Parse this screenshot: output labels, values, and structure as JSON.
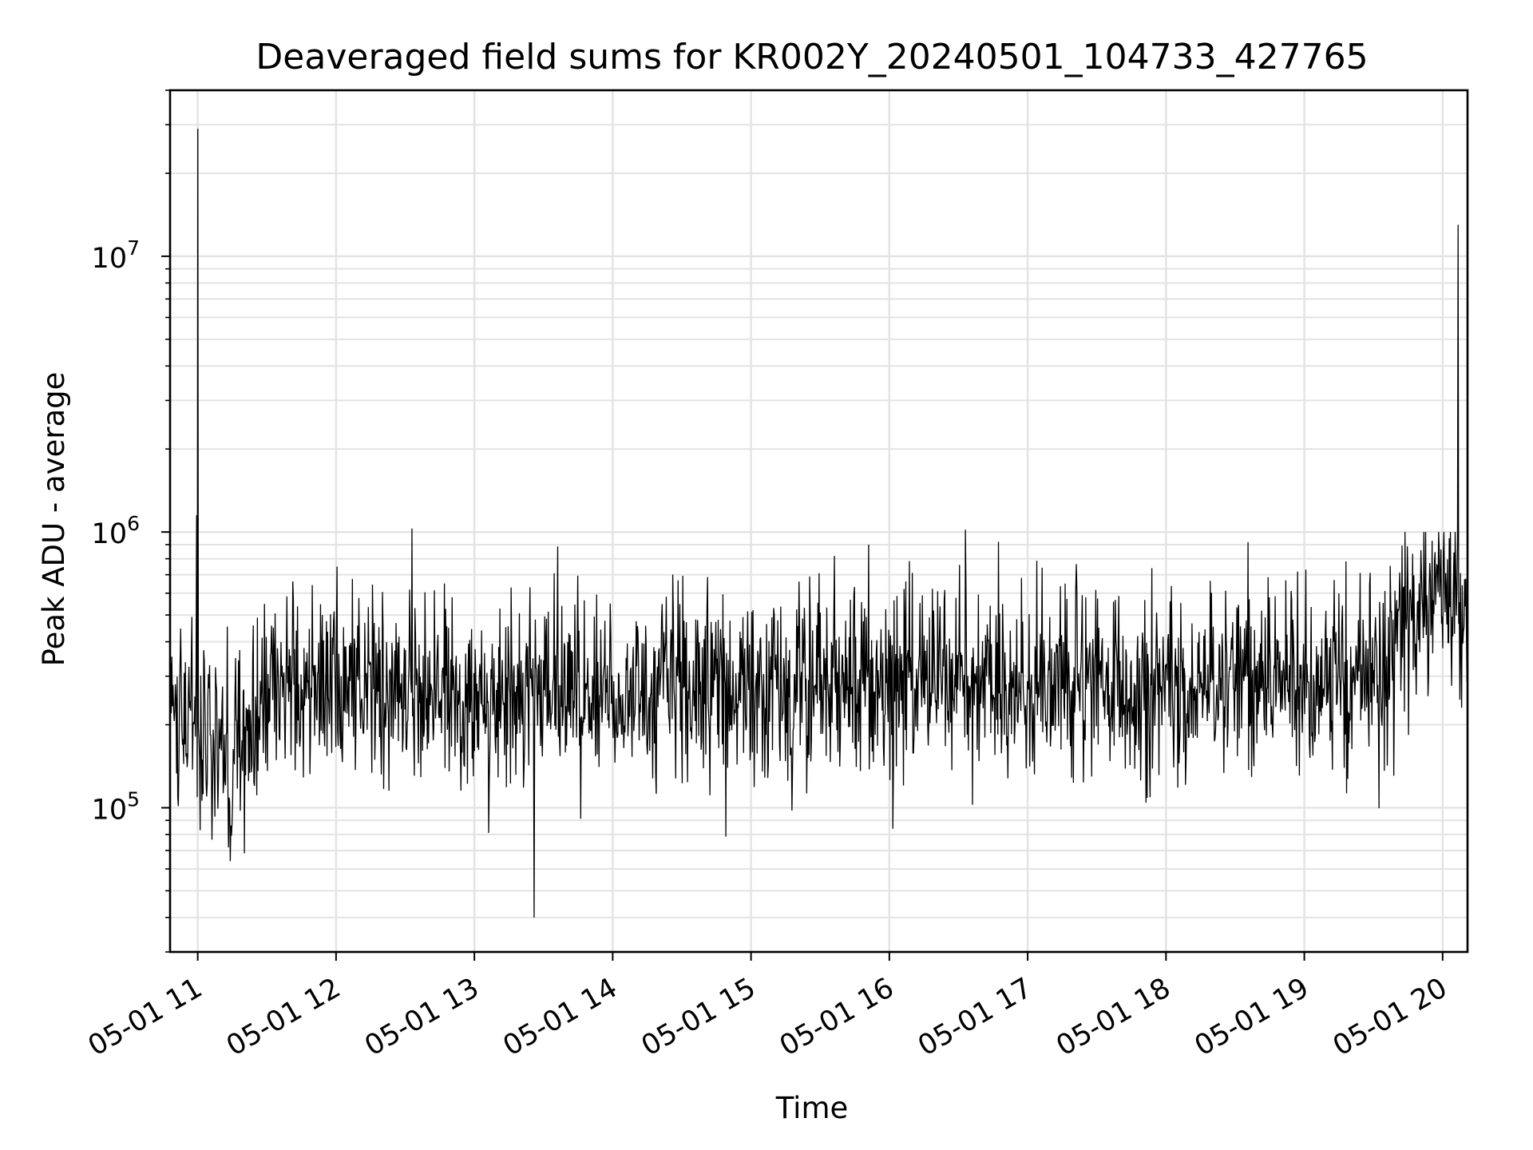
{
  "chart_data": {
    "type": "line",
    "title": "Deaveraged field sums for KR002Y_20240501_104733_427765",
    "xlabel": "Time",
    "ylabel": "Peak ADU - average",
    "yscale": "log",
    "grid": true,
    "xlim": [
      10.8,
      20.18
    ],
    "ylim": [
      30000,
      40000000
    ],
    "x_ticks": [
      {
        "value": 11,
        "label": "05-01 11"
      },
      {
        "value": 12,
        "label": "05-01 12"
      },
      {
        "value": 13,
        "label": "05-01 13"
      },
      {
        "value": 14,
        "label": "05-01 14"
      },
      {
        "value": 15,
        "label": "05-01 15"
      },
      {
        "value": 16,
        "label": "05-01 16"
      },
      {
        "value": 17,
        "label": "05-01 17"
      },
      {
        "value": 18,
        "label": "05-01 18"
      },
      {
        "value": 19,
        "label": "05-01 19"
      },
      {
        "value": 20,
        "label": "05-01 20"
      }
    ],
    "y_ticks": [
      {
        "value": 100000,
        "base": "10",
        "exp": "5"
      },
      {
        "value": 1000000,
        "base": "10",
        "exp": "6"
      },
      {
        "value": 10000000,
        "base": "10",
        "exp": "7"
      }
    ],
    "series": [
      {
        "name": "field sums",
        "color": "#000000",
        "x_start": 10.8,
        "x_end": 20.18,
        "n_points": 2200,
        "typical_band": [
          150000,
          600000
        ],
        "baseline_profile": [
          {
            "x": 10.8,
            "median": 280000
          },
          {
            "x": 11.1,
            "median": 180000
          },
          {
            "x": 11.3,
            "median": 140000
          },
          {
            "x": 11.5,
            "median": 270000
          },
          {
            "x": 13.0,
            "median": 260000
          },
          {
            "x": 16.0,
            "median": 290000
          },
          {
            "x": 19.0,
            "median": 280000
          },
          {
            "x": 19.6,
            "median": 320000
          },
          {
            "x": 19.75,
            "median": 550000
          },
          {
            "x": 20.18,
            "median": 520000
          }
        ],
        "notable_points": [
          {
            "x": 11.0,
            "y": 29000000
          },
          {
            "x": 10.99,
            "y": 1150000
          },
          {
            "x": 20.11,
            "y": 13000000
          },
          {
            "x": 13.43,
            "y": 40000
          },
          {
            "x": 12.55,
            "y": 1030000
          },
          {
            "x": 15.85,
            "y": 900000
          },
          {
            "x": 16.55,
            "y": 1020000
          }
        ]
      }
    ]
  }
}
